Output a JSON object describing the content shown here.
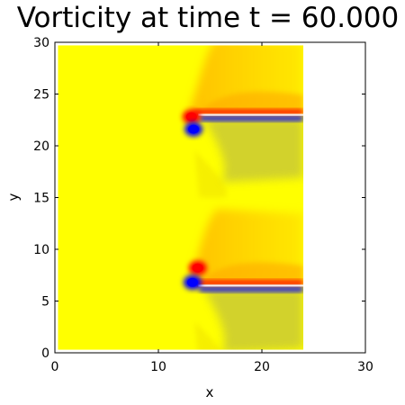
{
  "chart_data": {
    "type": "heatmap",
    "title": "Vorticity at time t = 60.000",
    "xlabel": "x",
    "ylabel": "y",
    "xlim": [
      0,
      30
    ],
    "ylim": [
      0,
      30
    ],
    "xticks": [
      "0",
      "10",
      "20",
      "30"
    ],
    "yticks": [
      "0",
      "5",
      "10",
      "15",
      "20",
      "25",
      "30"
    ],
    "field_extent": {
      "x": [
        0.3,
        24.0
      ],
      "y": [
        0.3,
        29.7
      ]
    },
    "colors": {
      "background": "#ffff00",
      "positive": "#ff0000",
      "negative": "#0000ff",
      "wake_warm": "#ffaa00",
      "wake_cool": "#7f7f7f"
    },
    "features": [
      {
        "name": "upper-plate",
        "type": "shear-layer",
        "x": [
          13.5,
          24.0
        ],
        "y": 23.0
      },
      {
        "name": "upper-positive-vortex",
        "type": "vortex",
        "sign": "positive",
        "x": 13.2,
        "y": 22.8
      },
      {
        "name": "upper-negative-vortex",
        "type": "vortex",
        "sign": "negative",
        "x": 13.4,
        "y": 21.6
      },
      {
        "name": "lower-plate",
        "type": "shear-layer",
        "x": [
          13.5,
          24.0
        ],
        "y": 6.5
      },
      {
        "name": "lower-positive-vortex",
        "type": "vortex",
        "sign": "positive",
        "x": 13.8,
        "y": 8.2
      },
      {
        "name": "lower-negative-vortex",
        "type": "vortex",
        "sign": "negative",
        "x": 13.3,
        "y": 6.8
      }
    ]
  }
}
